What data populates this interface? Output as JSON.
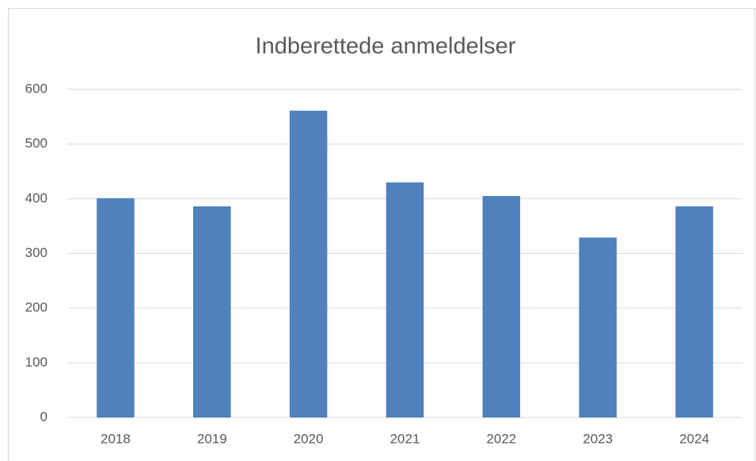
{
  "chart_data": {
    "type": "bar",
    "title": "Indberettede anmeldelser",
    "categories": [
      "2018",
      "2019",
      "2020",
      "2021",
      "2022",
      "2023",
      "2024"
    ],
    "values": [
      401,
      386,
      561,
      430,
      405,
      329,
      386
    ],
    "color": "#4f81bd",
    "ylim": [
      0,
      600
    ],
    "yticks": [
      0,
      100,
      200,
      300,
      400,
      500,
      600
    ],
    "grid": true
  }
}
